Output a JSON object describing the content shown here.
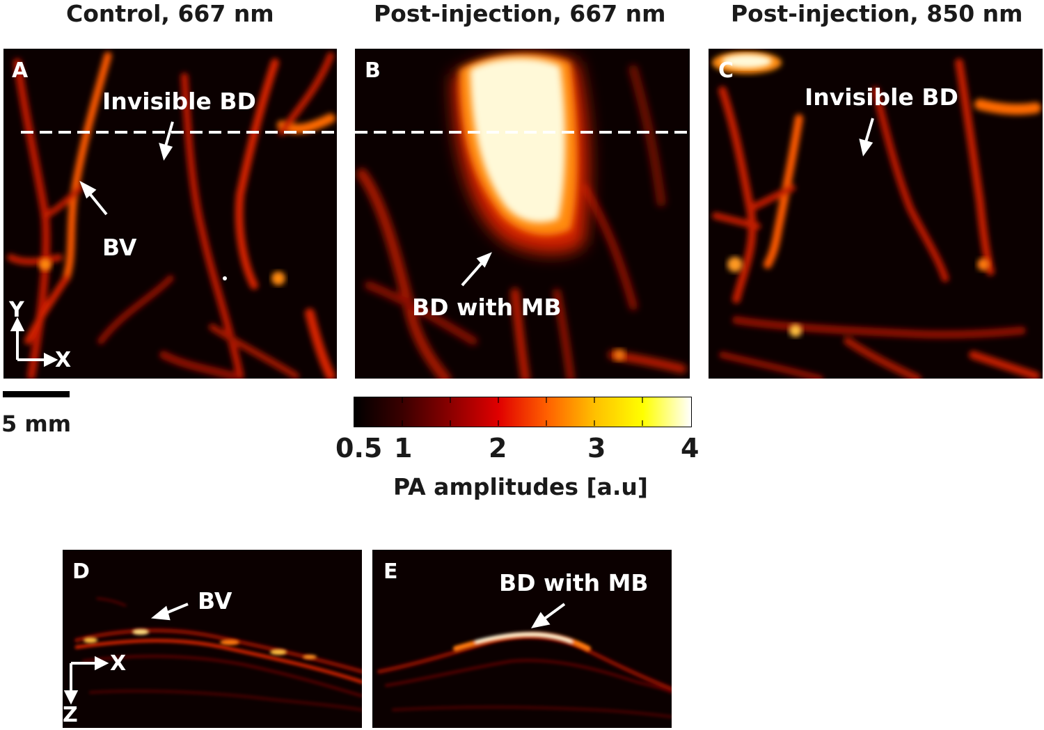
{
  "titles": {
    "a": "Control, 667 nm",
    "b": "Post-injection, 667 nm",
    "c": "Post-injection, 850 nm"
  },
  "panels": {
    "a": {
      "label": "A",
      "anno_bd": "Invisible BD",
      "anno_bv": "BV"
    },
    "b": {
      "label": "B",
      "anno_bd": "BD with MB"
    },
    "c": {
      "label": "C",
      "anno_bd": "Invisible BD"
    },
    "d": {
      "label": "D",
      "anno_bv": "BV"
    },
    "e": {
      "label": "E",
      "anno_bd": "BD with MB"
    }
  },
  "axes_xy": {
    "y": "Y",
    "x": "X"
  },
  "axes_xz": {
    "x": "X",
    "z": "Z"
  },
  "scale": {
    "label": "5 mm"
  },
  "colorbar": {
    "title": "PA amplitudes [a.u]",
    "ticks": [
      "0.5",
      "1",
      "2",
      "3",
      "4"
    ],
    "colors": [
      "#000000",
      "#3a0000",
      "#8b0000",
      "#e00000",
      "#ff6000",
      "#ffc000",
      "#ffff00",
      "#ffffff"
    ]
  },
  "colors": {
    "panel_bg": "#0b0000",
    "vessel_dim": "#7a0a00",
    "vessel": "#d42400",
    "vessel_hot": "#ff7a10",
    "hot": "#fff9d8",
    "annotation": "#ffffff"
  }
}
